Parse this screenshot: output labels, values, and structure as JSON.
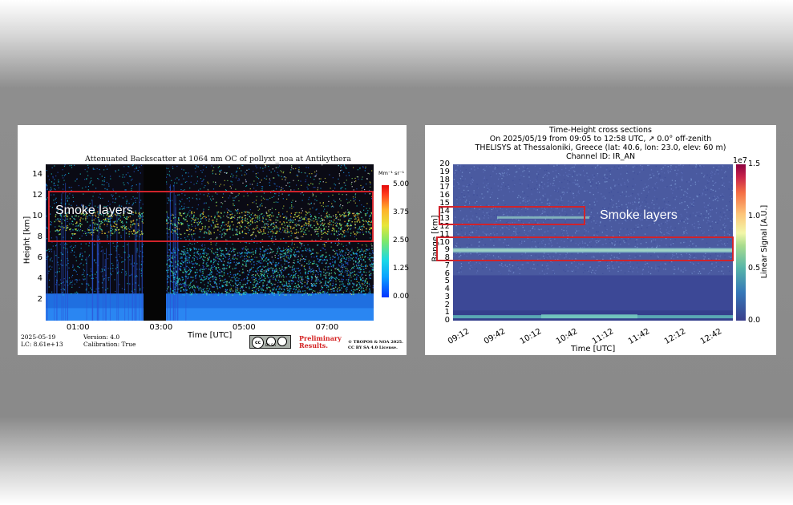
{
  "chart_data": [
    {
      "type": "heatmap",
      "title": "Attenuated Backscatter at 1064 nm OC of pollyxt_noa at Antikythera",
      "xlabel": "Time [UTC]",
      "ylabel": "Height [km]",
      "x_ticks": [
        "01:00",
        "03:00",
        "05:00",
        "07:00"
      ],
      "y_ticks": [
        "2",
        "4",
        "6",
        "8",
        "10",
        "12",
        "14"
      ],
      "ylim": [
        0,
        15
      ],
      "colorbar": {
        "unit": "Mm⁻¹ sr⁻¹",
        "ticks": [
          "0.00",
          "1.25",
          "2.50",
          "3.75",
          "5.00"
        ],
        "range": [
          0,
          5
        ]
      },
      "highlight": {
        "label": "Smoke layers",
        "y_range": [
          7.5,
          12.5
        ]
      },
      "footer": {
        "date": "2025-05-19",
        "lc": "LC: 8.61e+13",
        "version": "Version: 4.0",
        "calibration": "Calibration: True",
        "preliminary": "Preliminary Results.",
        "copyright": "© TROPOS & NOA 2025.",
        "license": "CC BY SA 4.0 License.",
        "cc_badge": "BY SA"
      }
    },
    {
      "type": "heatmap",
      "title": "Time-Height cross sections",
      "subtitle_lines": [
        "On 2025/05/19 from 09:05 to 12:58 UTC, ↗ 0.0° off-zenith",
        "THELISYS at Thessaloniki, Greece (lat: 40.6, lon: 23.0, elev: 60 m)",
        "Channel ID: IR_AN"
      ],
      "xlabel": "Time [UTC]",
      "ylabel": "Range [km]",
      "x_ticks": [
        "09:12",
        "09:42",
        "10:12",
        "10:42",
        "11:12",
        "11:42",
        "12:12",
        "12:42"
      ],
      "y_ticks": [
        "0",
        "1",
        "2",
        "3",
        "4",
        "5",
        "6",
        "7",
        "8",
        "9",
        "10",
        "11",
        "12",
        "13",
        "14",
        "15",
        "16",
        "17",
        "18",
        "19",
        "20"
      ],
      "ylim": [
        0,
        20
      ],
      "colorbar": {
        "label": "Linear Signal [A.U.]",
        "scale": "1e7",
        "ticks": [
          "0.0",
          "0.5",
          "1.0",
          "1.5"
        ],
        "range": [
          0,
          1.5
        ]
      },
      "highlights": [
        {
          "label": "Smoke layers",
          "y_range": [
            12.4,
            14.5
          ]
        },
        {
          "label": "",
          "y_range": [
            7.8,
            10.6
          ]
        }
      ],
      "layers_km": [
        13.2,
        9.0,
        0.5
      ]
    }
  ]
}
